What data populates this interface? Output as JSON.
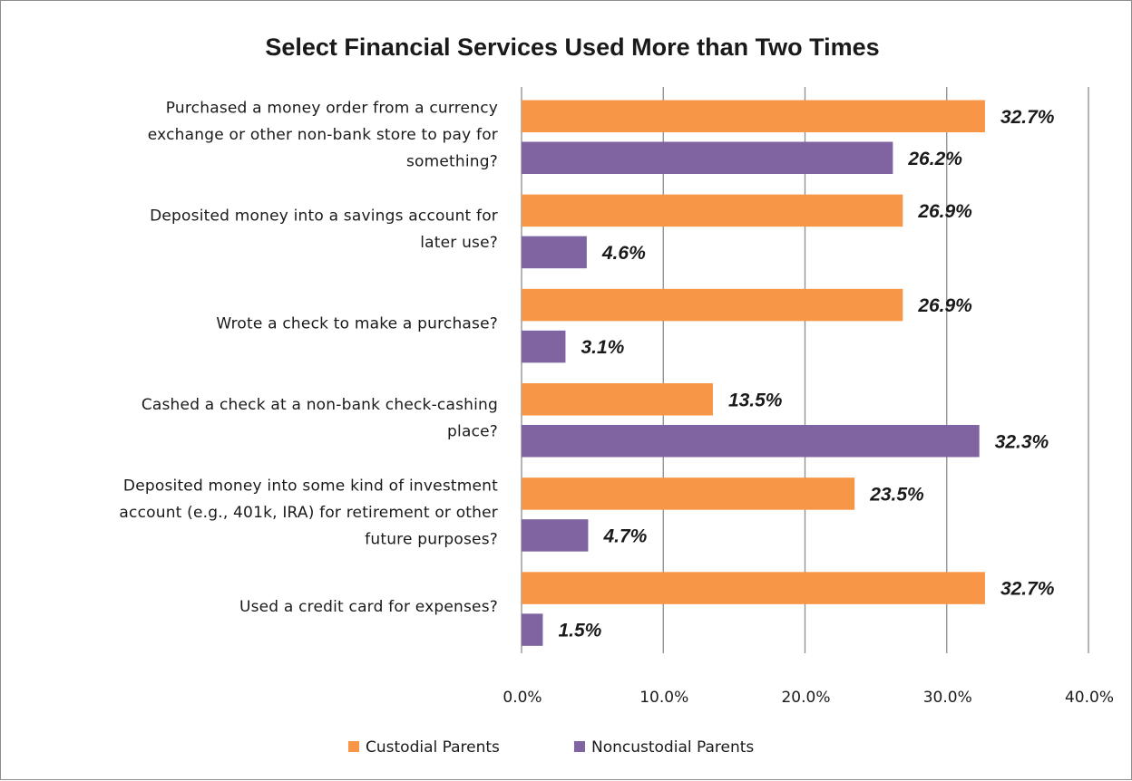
{
  "chart_data": {
    "type": "bar",
    "orientation": "horizontal",
    "title": "Select Financial Services Used More than Two Times",
    "categories": [
      [
        "Purchased a money order from a currency",
        "exchange or other non-bank store to pay for",
        "something?"
      ],
      [
        "Deposited money into a savings account for",
        "later use?"
      ],
      [
        "Wrote a check to make a purchase?"
      ],
      [
        "Cashed a check at a non-bank check-cashing",
        "place?"
      ],
      [
        "Deposited money into some kind of investment",
        "account (e.g., 401k, IRA) for retirement or other",
        "future purposes?"
      ],
      [
        "Used a credit card for expenses?"
      ]
    ],
    "series": [
      {
        "name": "Custodial Parents",
        "color": "#F79646",
        "values": [
          32.7,
          26.9,
          26.9,
          13.5,
          23.5,
          32.7
        ],
        "labels": [
          "32.7%",
          "26.9%",
          "26.9%",
          "13.5%",
          "23.5%",
          "32.7%"
        ]
      },
      {
        "name": "Noncustodial Parents",
        "color": "#8064A2",
        "values": [
          26.2,
          4.6,
          3.1,
          32.3,
          4.7,
          1.5
        ],
        "labels": [
          "26.2%",
          "4.6%",
          "3.1%",
          "32.3%",
          "4.7%",
          "1.5%"
        ]
      }
    ],
    "xlim": [
      0,
      40
    ],
    "x_ticks": [
      "0.0%",
      "10.0%",
      "20.0%",
      "30.0%",
      "40.0%"
    ],
    "x_tick_values": [
      0,
      10,
      20,
      30,
      40
    ],
    "grid": true,
    "gridline_color": "#8c8c8c",
    "legend_position": "bottom"
  }
}
